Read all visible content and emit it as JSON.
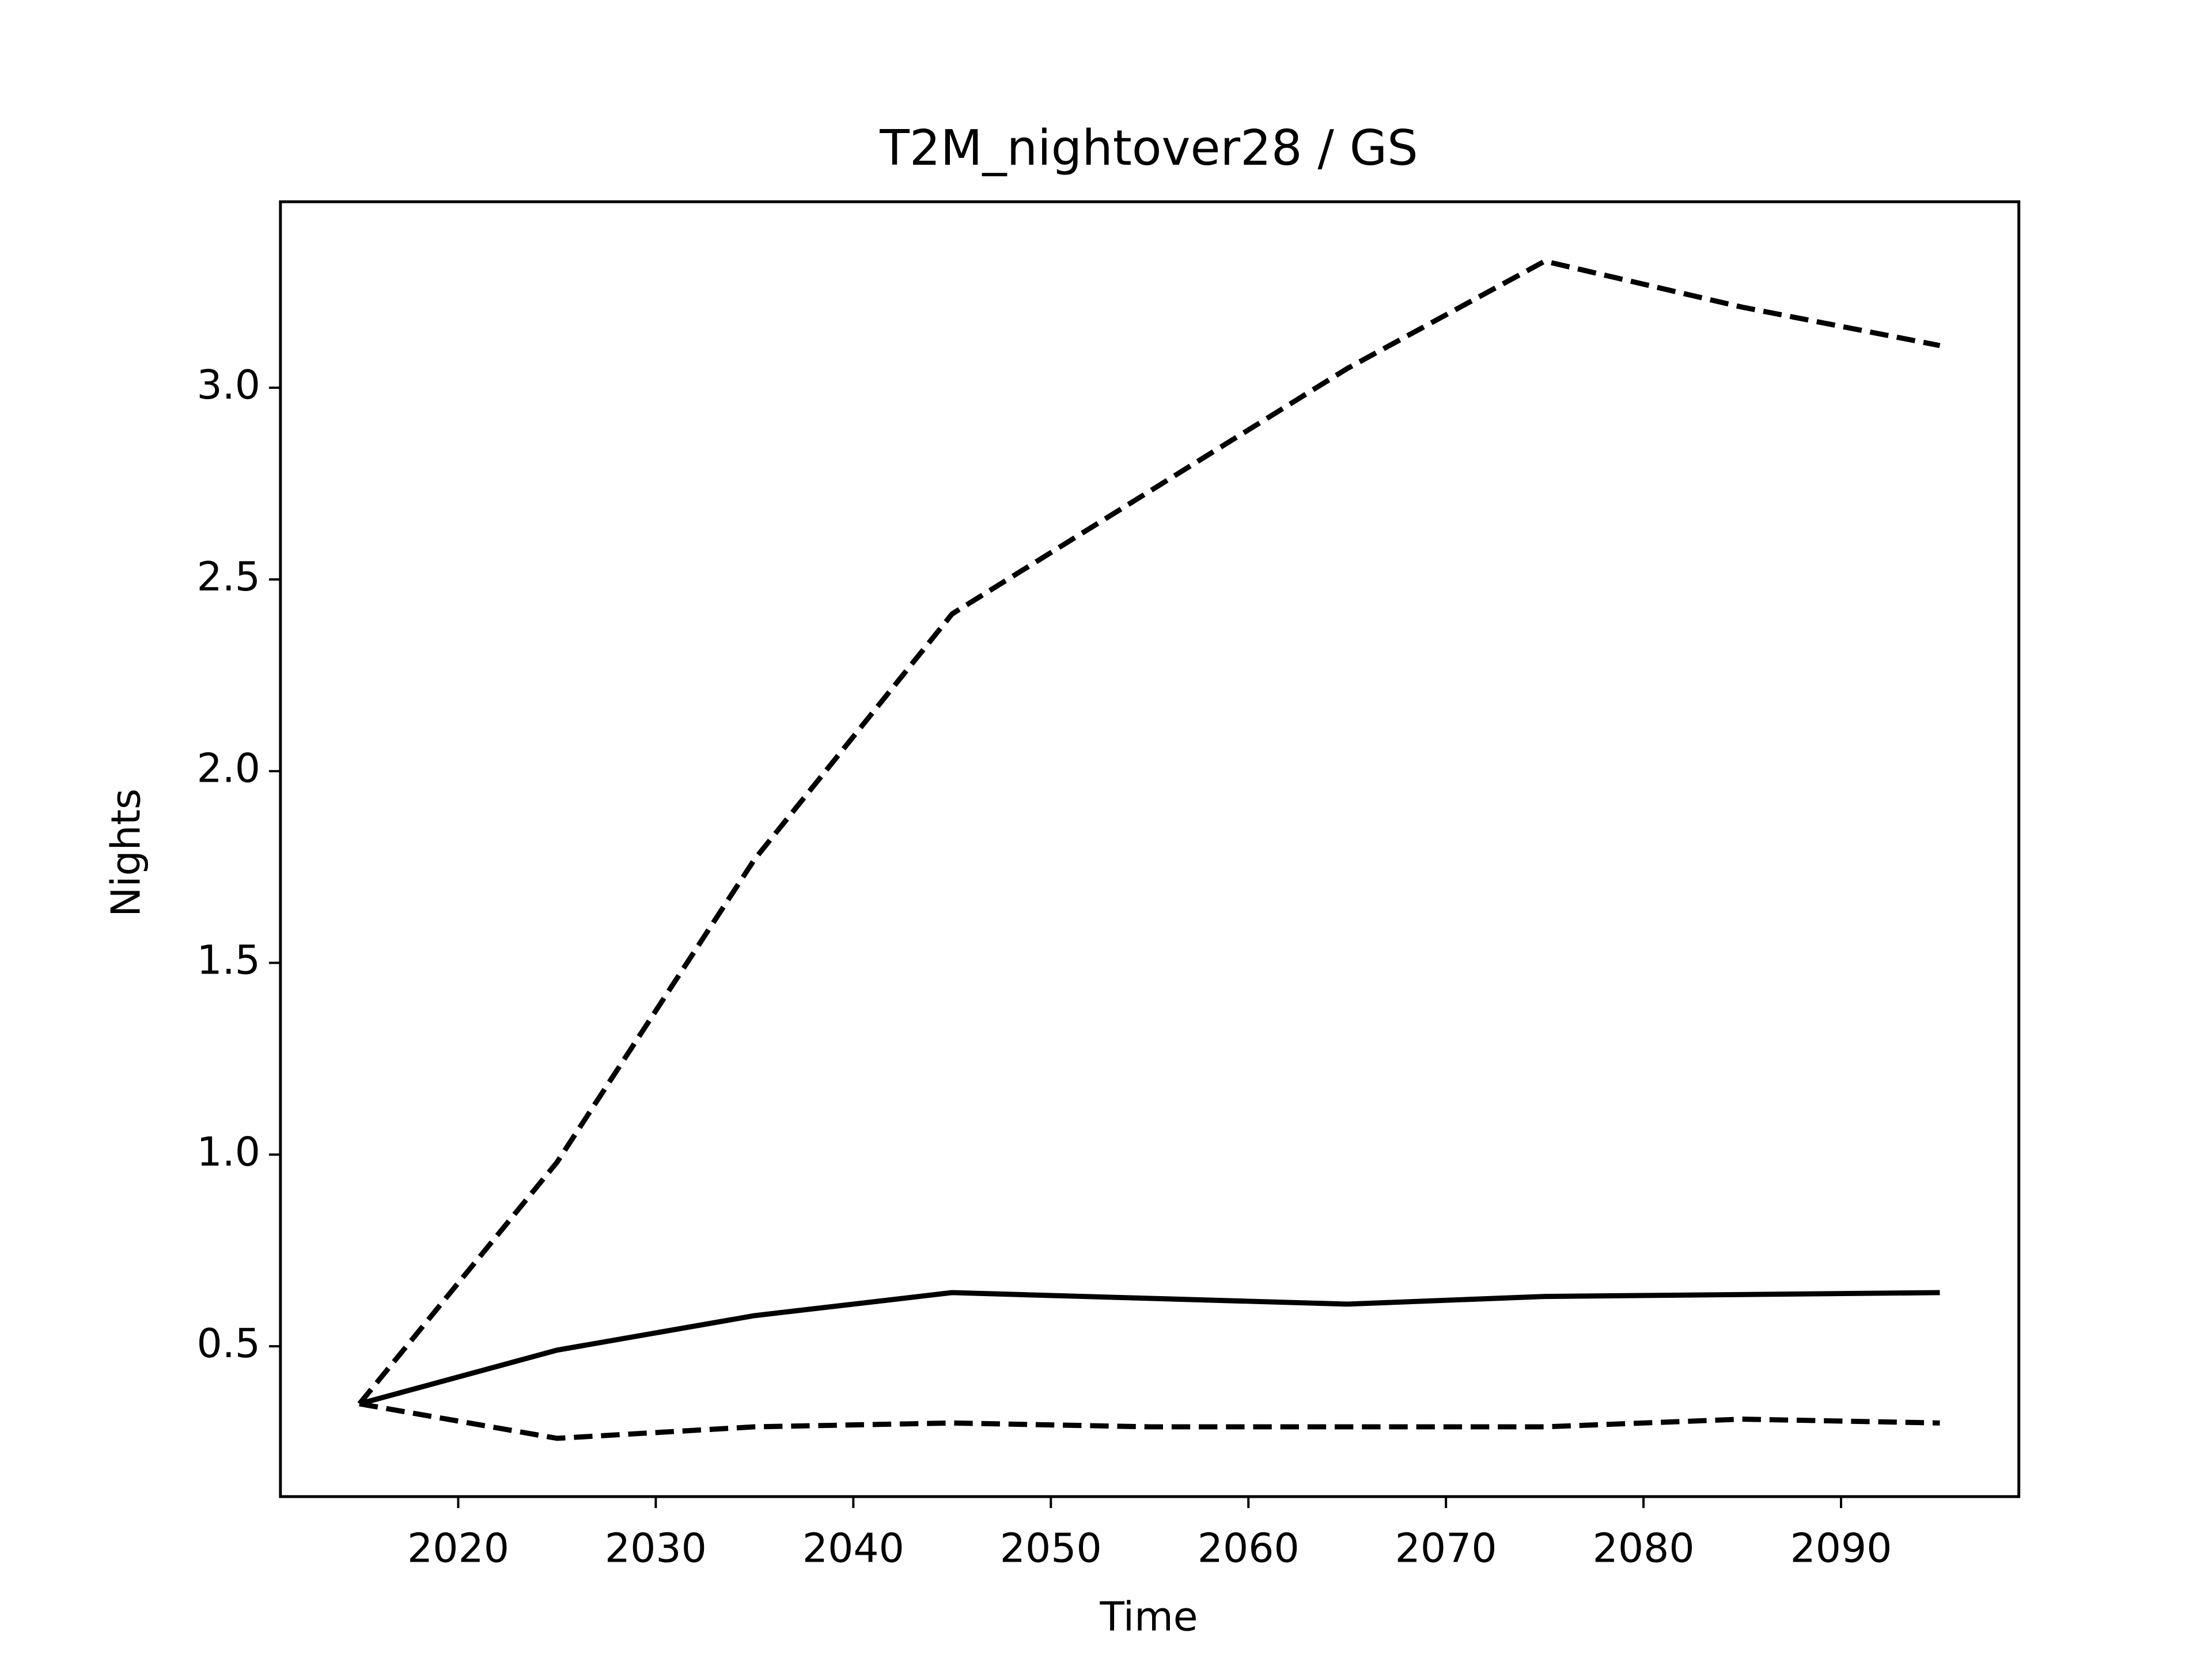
{
  "chart_data": {
    "type": "line",
    "title": "T2M_nightover28 / GS",
    "x_label": "Time",
    "y_label": "Nights",
    "x": [
      2015,
      2025,
      2035,
      2045,
      2055,
      2065,
      2075,
      2085,
      2095
    ],
    "series": [
      {
        "color": "#000000",
        "dash": true,
        "values": [
          0.35,
          0.98,
          1.77,
          2.41,
          2.73,
          3.05,
          3.33,
          3.21,
          3.11
        ]
      },
      {
        "color": "#000000",
        "dash": false,
        "values": [
          0.35,
          0.49,
          0.58,
          0.64,
          0.625,
          0.61,
          0.63,
          0.635,
          0.64
        ]
      },
      {
        "color": "#000000",
        "dash": true,
        "values": [
          0.35,
          0.26,
          0.29,
          0.3,
          0.29,
          0.29,
          0.29,
          0.31,
          0.3
        ]
      }
    ],
    "xlim": [
      2011,
      2099
    ],
    "xticks": [
      2020,
      2030,
      2040,
      2050,
      2060,
      2070,
      2080,
      2090
    ],
    "ylim": [
      0.108,
      3.485
    ],
    "yticks": [
      0.5,
      {
        "value": 1,
        "label": "1.0"
      },
      1.5,
      {
        "value": 2,
        "label": "2.0"
      },
      2.5,
      {
        "value": 3,
        "label": "3.0"
      }
    ],
    "grid": false
  }
}
